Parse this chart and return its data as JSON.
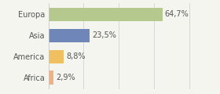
{
  "categories": [
    "Europa",
    "Asia",
    "America",
    "Africa"
  ],
  "values": [
    64.7,
    23.5,
    8.8,
    2.9
  ],
  "bar_colors": [
    "#b5c98e",
    "#6f87b8",
    "#f0c060",
    "#f5b080"
  ],
  "labels": [
    "64,7%",
    "23,5%",
    "8,8%",
    "2,9%"
  ],
  "background_color": "#f5f5f0",
  "text_color": "#555555",
  "xlim": [
    0,
    95
  ],
  "bar_height": 0.65,
  "label_fontsize": 7.0,
  "tick_fontsize": 7.0,
  "grid_color": "#cccccc"
}
